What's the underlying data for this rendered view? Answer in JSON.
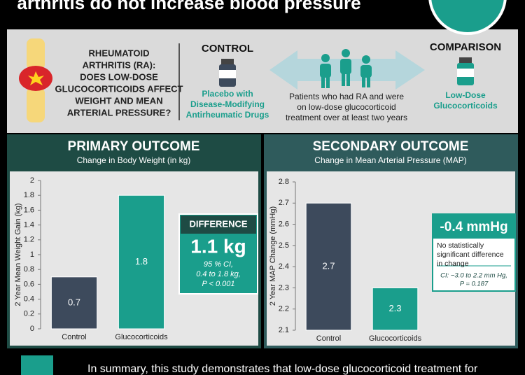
{
  "banner": {
    "title": "arthritis do not increase blood pressure"
  },
  "study": {
    "question": [
      "RHEUMATOID",
      "ARTHRITIS (RA):",
      "DOES LOW-DOSE",
      "GLUCOCORTICOIDS AFFECT",
      "WEIGHT AND MEAN",
      "ARTERIAL PRESSURE?"
    ],
    "control": {
      "label": "CONTROL",
      "text": [
        "Placebo with",
        "Disease-Modifying",
        "Antirheumatic Drugs"
      ]
    },
    "population": [
      "Patients who had RA and were",
      "on low-dose glucocorticoid",
      "treatment over at least two years"
    ],
    "comparison": {
      "label": "COMPARISON",
      "text": [
        "Low-Dose",
        "Glucocorticoids"
      ]
    }
  },
  "chart_data": [
    {
      "type": "bar",
      "title": "PRIMARY OUTCOME",
      "subtitle": "Change in Body Weight (in kg)",
      "y_label": "2 Year Mean Weight Gain (kg)",
      "categories": [
        "Control",
        "Glucocorticoids"
      ],
      "values": [
        0.7,
        1.8
      ],
      "colors": [
        "#3d4a5c",
        "#1a9e8c"
      ],
      "ylim": [
        0,
        2
      ],
      "yticks": [
        0,
        0.2,
        0.4,
        0.6,
        0.8,
        1,
        1.2,
        1.4,
        1.6,
        1.8,
        2
      ],
      "annotation": {
        "label": "DIFFERENCE",
        "value": "1.1 kg",
        "notes": [
          "95 % CI,",
          "0.4 to 1.8 kg,",
          "P < 0.001"
        ]
      }
    },
    {
      "type": "bar",
      "title": "SECONDARY OUTCOME",
      "subtitle": "Change in Mean Arterial Pressure (MAP)",
      "y_label": "2 Year MAP Change (mmHg)",
      "categories": [
        "Control",
        "Glucocorticoids"
      ],
      "values": [
        2.7,
        2.3
      ],
      "colors": [
        "#3d4a5c",
        "#1a9e8c"
      ],
      "ylim": [
        2.1,
        2.8
      ],
      "yticks": [
        2.1,
        2.2,
        2.3,
        2.4,
        2.5,
        2.6,
        2.7,
        2.8
      ],
      "annotation": {
        "label": "-0.4 mmHg",
        "text": [
          "No statistically",
          "significant difference",
          "in change"
        ],
        "notes": [
          "CI: −3.0 to 2.2 mm Hg,",
          "P = 0.187"
        ]
      }
    }
  ],
  "summary": "In summary, this study demonstrates that low-dose glucocorticoid treatment for"
}
